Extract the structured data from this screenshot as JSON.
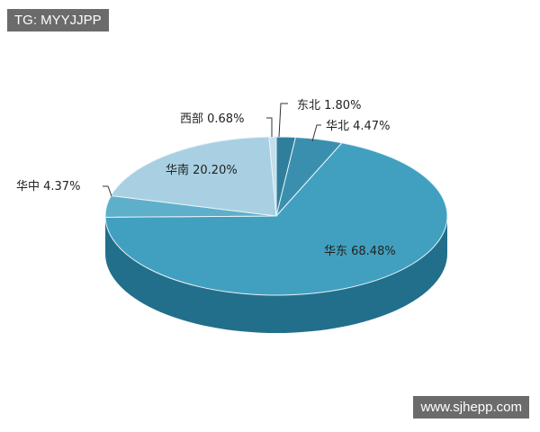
{
  "watermarks": {
    "top_left": "TG: MYYJJPP",
    "bottom_right": "www.sjhepp.com"
  },
  "chart_data": {
    "type": "pie",
    "style": "3d",
    "title": "",
    "slices": [
      {
        "label": "东北",
        "value": 1.8,
        "text": "东北 1.80%",
        "color": "#2f7f9c"
      },
      {
        "label": "华北",
        "value": 4.47,
        "text": "华北 4.47%",
        "color": "#3b8fae"
      },
      {
        "label": "华东",
        "value": 68.48,
        "text": "华东 68.48%",
        "color": "#41a0bf"
      },
      {
        "label": "华中",
        "value": 4.37,
        "text": "华中 4.37%",
        "color": "#5eafca"
      },
      {
        "label": "华南",
        "value": 20.2,
        "text": "华南 20.20%",
        "color": "#a9d0e2"
      },
      {
        "label": "西部",
        "value": 0.68,
        "text": "西部 0.68%",
        "color": "#c4dfeb"
      }
    ],
    "side_color": "#226f8b"
  }
}
